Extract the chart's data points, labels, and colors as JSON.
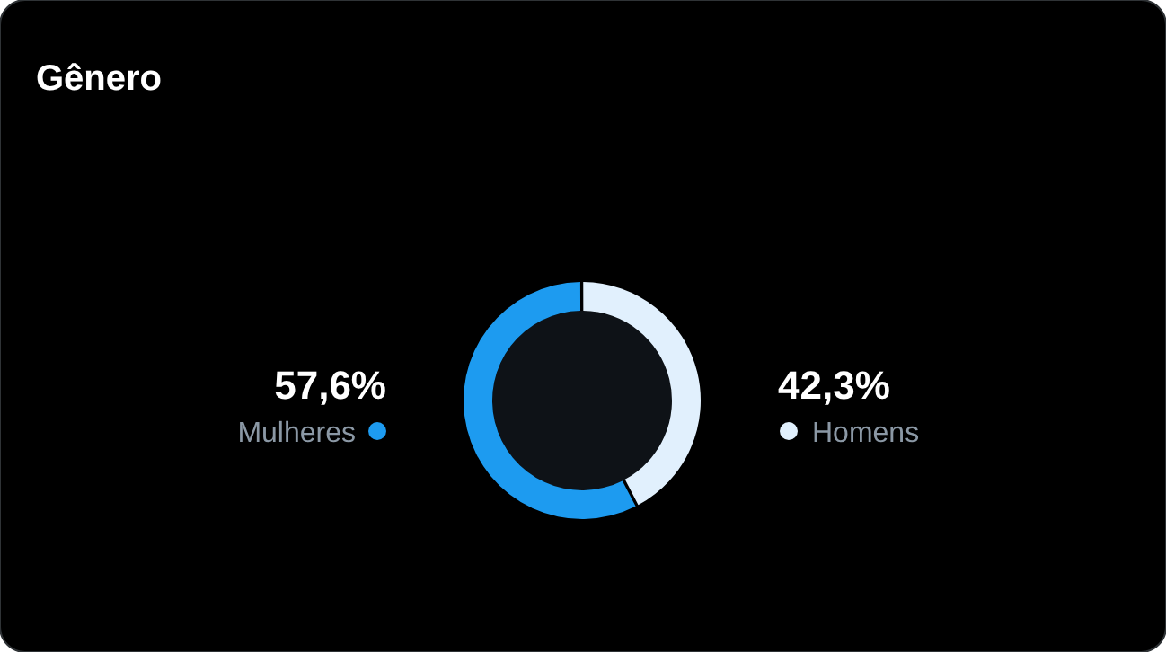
{
  "chart_data": {
    "type": "donut",
    "title": "Gênero",
    "categories": [
      "Mulheres",
      "Homens"
    ],
    "values": [
      57.6,
      42.3
    ],
    "colors": [
      "#1d9bf0",
      "#e1f0fd"
    ],
    "value_labels": [
      "57,6%",
      "42,3%"
    ]
  }
}
